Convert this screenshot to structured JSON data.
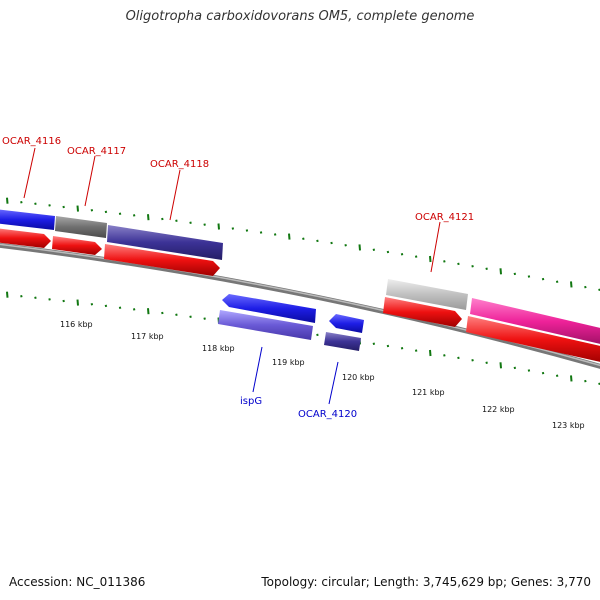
{
  "title": "Oligotropha carboxidovorans OM5, complete genome",
  "footer": {
    "accession": "Accession: NC_011386",
    "topology": "Topology: circular; Length: 3,745,629 bp; Genes: 3,770"
  },
  "colors": {
    "forward_gene": "#1e1ee6",
    "reverse_gene": "#3c3296",
    "cds": "#ee1111",
    "grey_gene": "#707070",
    "light_grey_gene": "#c0c0c0",
    "pink_gene": "#ee2299",
    "label_red": "#cc0000",
    "label_blue": "#0000cc",
    "tick_green": "#117711",
    "backbone": "#888888"
  },
  "scale_labels": [
    "116 kbp",
    "117 kbp",
    "118 kbp",
    "119 kbp",
    "120 kbp",
    "121 kbp",
    "122 kbp",
    "123 kbp"
  ],
  "gene_labels": {
    "ocar_4116": "OCAR_4116",
    "ocar_4117": "OCAR_4117",
    "ocar_4118": "OCAR_4118",
    "ocar_4121": "OCAR_4121",
    "ispg": "ispG",
    "ocar_4120": "OCAR_4120"
  }
}
